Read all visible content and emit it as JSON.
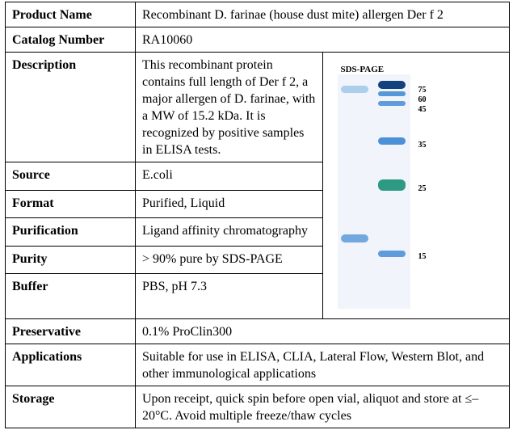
{
  "rows": [
    {
      "label": "Product Name",
      "value": "Recombinant D. farinae (house dust mite) allergen Der f 2"
    },
    {
      "label": "Catalog Number",
      "value": "RA10060"
    },
    {
      "label": "Description",
      "value": "This recombinant protein contains full length of Der f 2, a major allergen of D. farinae, with a MW of 15.2 kDa. It is recognized by positive samples in ELISA tests."
    },
    {
      "label": "Source",
      "value": "E.coli"
    },
    {
      "label": "Format",
      "value": "Purified, Liquid"
    },
    {
      "label": "Purification",
      "value": "Ligand affinity chromatography"
    },
    {
      "label": "Purity",
      "value": "> 90% pure by SDS-PAGE"
    },
    {
      "label": "Buffer",
      "value": "PBS, pH 7.3"
    },
    {
      "label": "Preservative",
      "value": "0.1% ProClin300"
    },
    {
      "label": "Applications",
      "value": "Suitable for use in ELISA, CLIA, Lateral Flow, Western Blot, and other immunological applications"
    },
    {
      "label": "Storage",
      "value": "Upon receipt, quick spin before open vial, aliquot and store at ≤–20°C. Avoid multiple freeze/thaw cycles"
    }
  ],
  "gel": {
    "title": "SDS-PAGE",
    "marker_labels": [
      "75",
      "60",
      "45",
      "35",
      "25",
      "15"
    ],
    "colors": {
      "band_blue": "#2f7fd0",
      "band_dark": "#15407f",
      "band_green": "#2f9a84",
      "band_faint": "#8fbde6",
      "gel_bg": "#f1f4fa"
    }
  }
}
